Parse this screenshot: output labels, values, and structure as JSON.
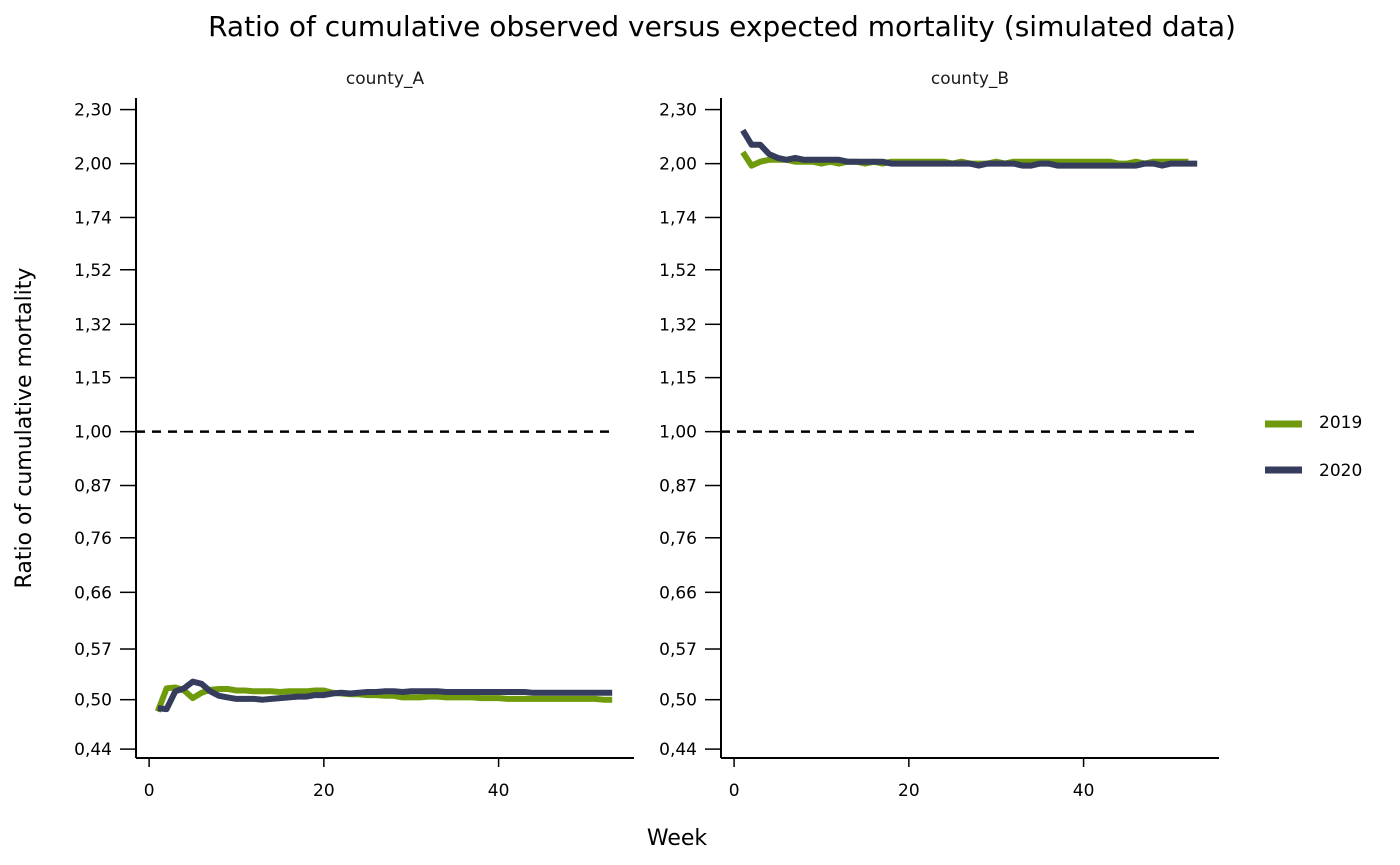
{
  "chart_data": {
    "type": "line",
    "title": "Ratio of cumulative observed versus expected mortality (simulated data)",
    "xlabel": "Week",
    "ylabel": "Ratio of cumulative mortality",
    "x_ticks": [
      "0",
      "20",
      "40"
    ],
    "x_tick_values": [
      0,
      20,
      40
    ],
    "y_scale": "log",
    "y_ticks": [
      "0,44",
      "0,50",
      "0,57",
      "0,66",
      "0,76",
      "0,87",
      "1,00",
      "1,15",
      "1,32",
      "1,52",
      "1,74",
      "2,00",
      "2,30"
    ],
    "y_tick_values": [
      0.44,
      0.5,
      0.57,
      0.66,
      0.76,
      0.87,
      1.0,
      1.15,
      1.32,
      1.52,
      1.74,
      2.0,
      2.3
    ],
    "xlim": [
      -1.5,
      55.5
    ],
    "ylim": [
      0.43,
      2.37
    ],
    "reference_line": 1.0,
    "legend_placement": "right",
    "grid": false,
    "series_styles": [
      {
        "name": "2019",
        "color": "#6f9a0c"
      },
      {
        "name": "2020",
        "color": "#363c5c"
      }
    ],
    "panels": [
      {
        "label": "county_A",
        "series": [
          {
            "name": "2019",
            "x": [
              1,
              2,
              3,
              4,
              5,
              6,
              7,
              8,
              9,
              10,
              11,
              12,
              13,
              14,
              15,
              16,
              17,
              18,
              19,
              20,
              21,
              22,
              23,
              24,
              25,
              26,
              27,
              28,
              29,
              30,
              31,
              32,
              33,
              34,
              35,
              36,
              37,
              38,
              39,
              40,
              41,
              42,
              43,
              44,
              45,
              46,
              47,
              48,
              49,
              50,
              51,
              52,
              53
            ],
            "y": [
              0.485,
              0.515,
              0.516,
              0.512,
              0.502,
              0.509,
              0.513,
              0.514,
              0.514,
              0.512,
              0.512,
              0.511,
              0.511,
              0.511,
              0.51,
              0.511,
              0.511,
              0.511,
              0.512,
              0.512,
              0.509,
              0.508,
              0.507,
              0.507,
              0.506,
              0.506,
              0.505,
              0.505,
              0.503,
              0.503,
              0.503,
              0.504,
              0.504,
              0.503,
              0.503,
              0.503,
              0.503,
              0.502,
              0.502,
              0.502,
              0.501,
              0.501,
              0.501,
              0.501,
              0.501,
              0.501,
              0.501,
              0.501,
              0.501,
              0.501,
              0.501,
              0.5,
              0.5
            ]
          },
          {
            "name": "2020",
            "x": [
              1,
              2,
              3,
              4,
              5,
              6,
              7,
              8,
              9,
              10,
              11,
              12,
              13,
              14,
              15,
              16,
              17,
              18,
              19,
              20,
              21,
              22,
              23,
              24,
              25,
              26,
              27,
              28,
              29,
              30,
              31,
              32,
              33,
              34,
              35,
              36,
              37,
              38,
              39,
              40,
              41,
              42,
              43,
              44,
              45,
              46,
              47,
              48,
              49,
              50,
              51,
              52,
              53
            ],
            "y": [
              0.489,
              0.488,
              0.511,
              0.515,
              0.524,
              0.521,
              0.511,
              0.505,
              0.503,
              0.501,
              0.501,
              0.501,
              0.5,
              0.501,
              0.502,
              0.503,
              0.504,
              0.504,
              0.506,
              0.506,
              0.508,
              0.509,
              0.508,
              0.509,
              0.51,
              0.51,
              0.511,
              0.511,
              0.51,
              0.511,
              0.511,
              0.511,
              0.511,
              0.51,
              0.51,
              0.51,
              0.51,
              0.51,
              0.51,
              0.51,
              0.51,
              0.51,
              0.51,
              0.509,
              0.509,
              0.509,
              0.509,
              0.509,
              0.509,
              0.509,
              0.509,
              0.509,
              0.509
            ]
          }
        ]
      },
      {
        "label": "county_B",
        "series": [
          {
            "name": "2019",
            "x": [
              1,
              2,
              3,
              4,
              5,
              6,
              7,
              8,
              9,
              10,
              11,
              12,
              13,
              14,
              15,
              16,
              17,
              18,
              19,
              20,
              21,
              22,
              23,
              24,
              25,
              26,
              27,
              28,
              29,
              30,
              31,
              32,
              33,
              34,
              35,
              36,
              37,
              38,
              39,
              40,
              41,
              42,
              43,
              44,
              45,
              46,
              47,
              48,
              49,
              50,
              51,
              52
            ],
            "y": [
              2.06,
              1.99,
              2.01,
              2.02,
              2.02,
              2.02,
              2.01,
              2.01,
              2.01,
              2.0,
              2.01,
              2.0,
              2.01,
              2.01,
              2.0,
              2.01,
              2.0,
              2.01,
              2.01,
              2.01,
              2.01,
              2.01,
              2.01,
              2.01,
              2.0,
              2.01,
              2.0,
              2.0,
              2.0,
              2.01,
              2.0,
              2.01,
              2.01,
              2.01,
              2.01,
              2.01,
              2.01,
              2.01,
              2.01,
              2.01,
              2.01,
              2.01,
              2.01,
              2.0,
              2.0,
              2.01,
              2.0,
              2.01,
              2.01,
              2.01,
              2.01,
              2.01
            ]
          },
          {
            "name": "2020",
            "x": [
              1,
              2,
              3,
              4,
              5,
              6,
              7,
              8,
              9,
              10,
              11,
              12,
              13,
              14,
              15,
              16,
              17,
              18,
              19,
              20,
              21,
              22,
              23,
              24,
              25,
              26,
              27,
              28,
              29,
              30,
              31,
              32,
              33,
              34,
              35,
              36,
              37,
              38,
              39,
              40,
              41,
              42,
              43,
              44,
              45,
              46,
              47,
              48,
              49,
              50,
              51,
              52,
              53
            ],
            "y": [
              2.18,
              2.1,
              2.1,
              2.05,
              2.03,
              2.02,
              2.03,
              2.02,
              2.02,
              2.02,
              2.02,
              2.02,
              2.01,
              2.01,
              2.01,
              2.01,
              2.01,
              2.0,
              2.0,
              2.0,
              2.0,
              2.0,
              2.0,
              2.0,
              2.0,
              2.0,
              2.0,
              1.99,
              2.0,
              2.0,
              2.0,
              2.0,
              1.99,
              1.99,
              2.0,
              2.0,
              1.99,
              1.99,
              1.99,
              1.99,
              1.99,
              1.99,
              1.99,
              1.99,
              1.99,
              1.99,
              2.0,
              2.0,
              1.99,
              2.0,
              2.0,
              2.0,
              2.0
            ]
          }
        ]
      }
    ]
  }
}
